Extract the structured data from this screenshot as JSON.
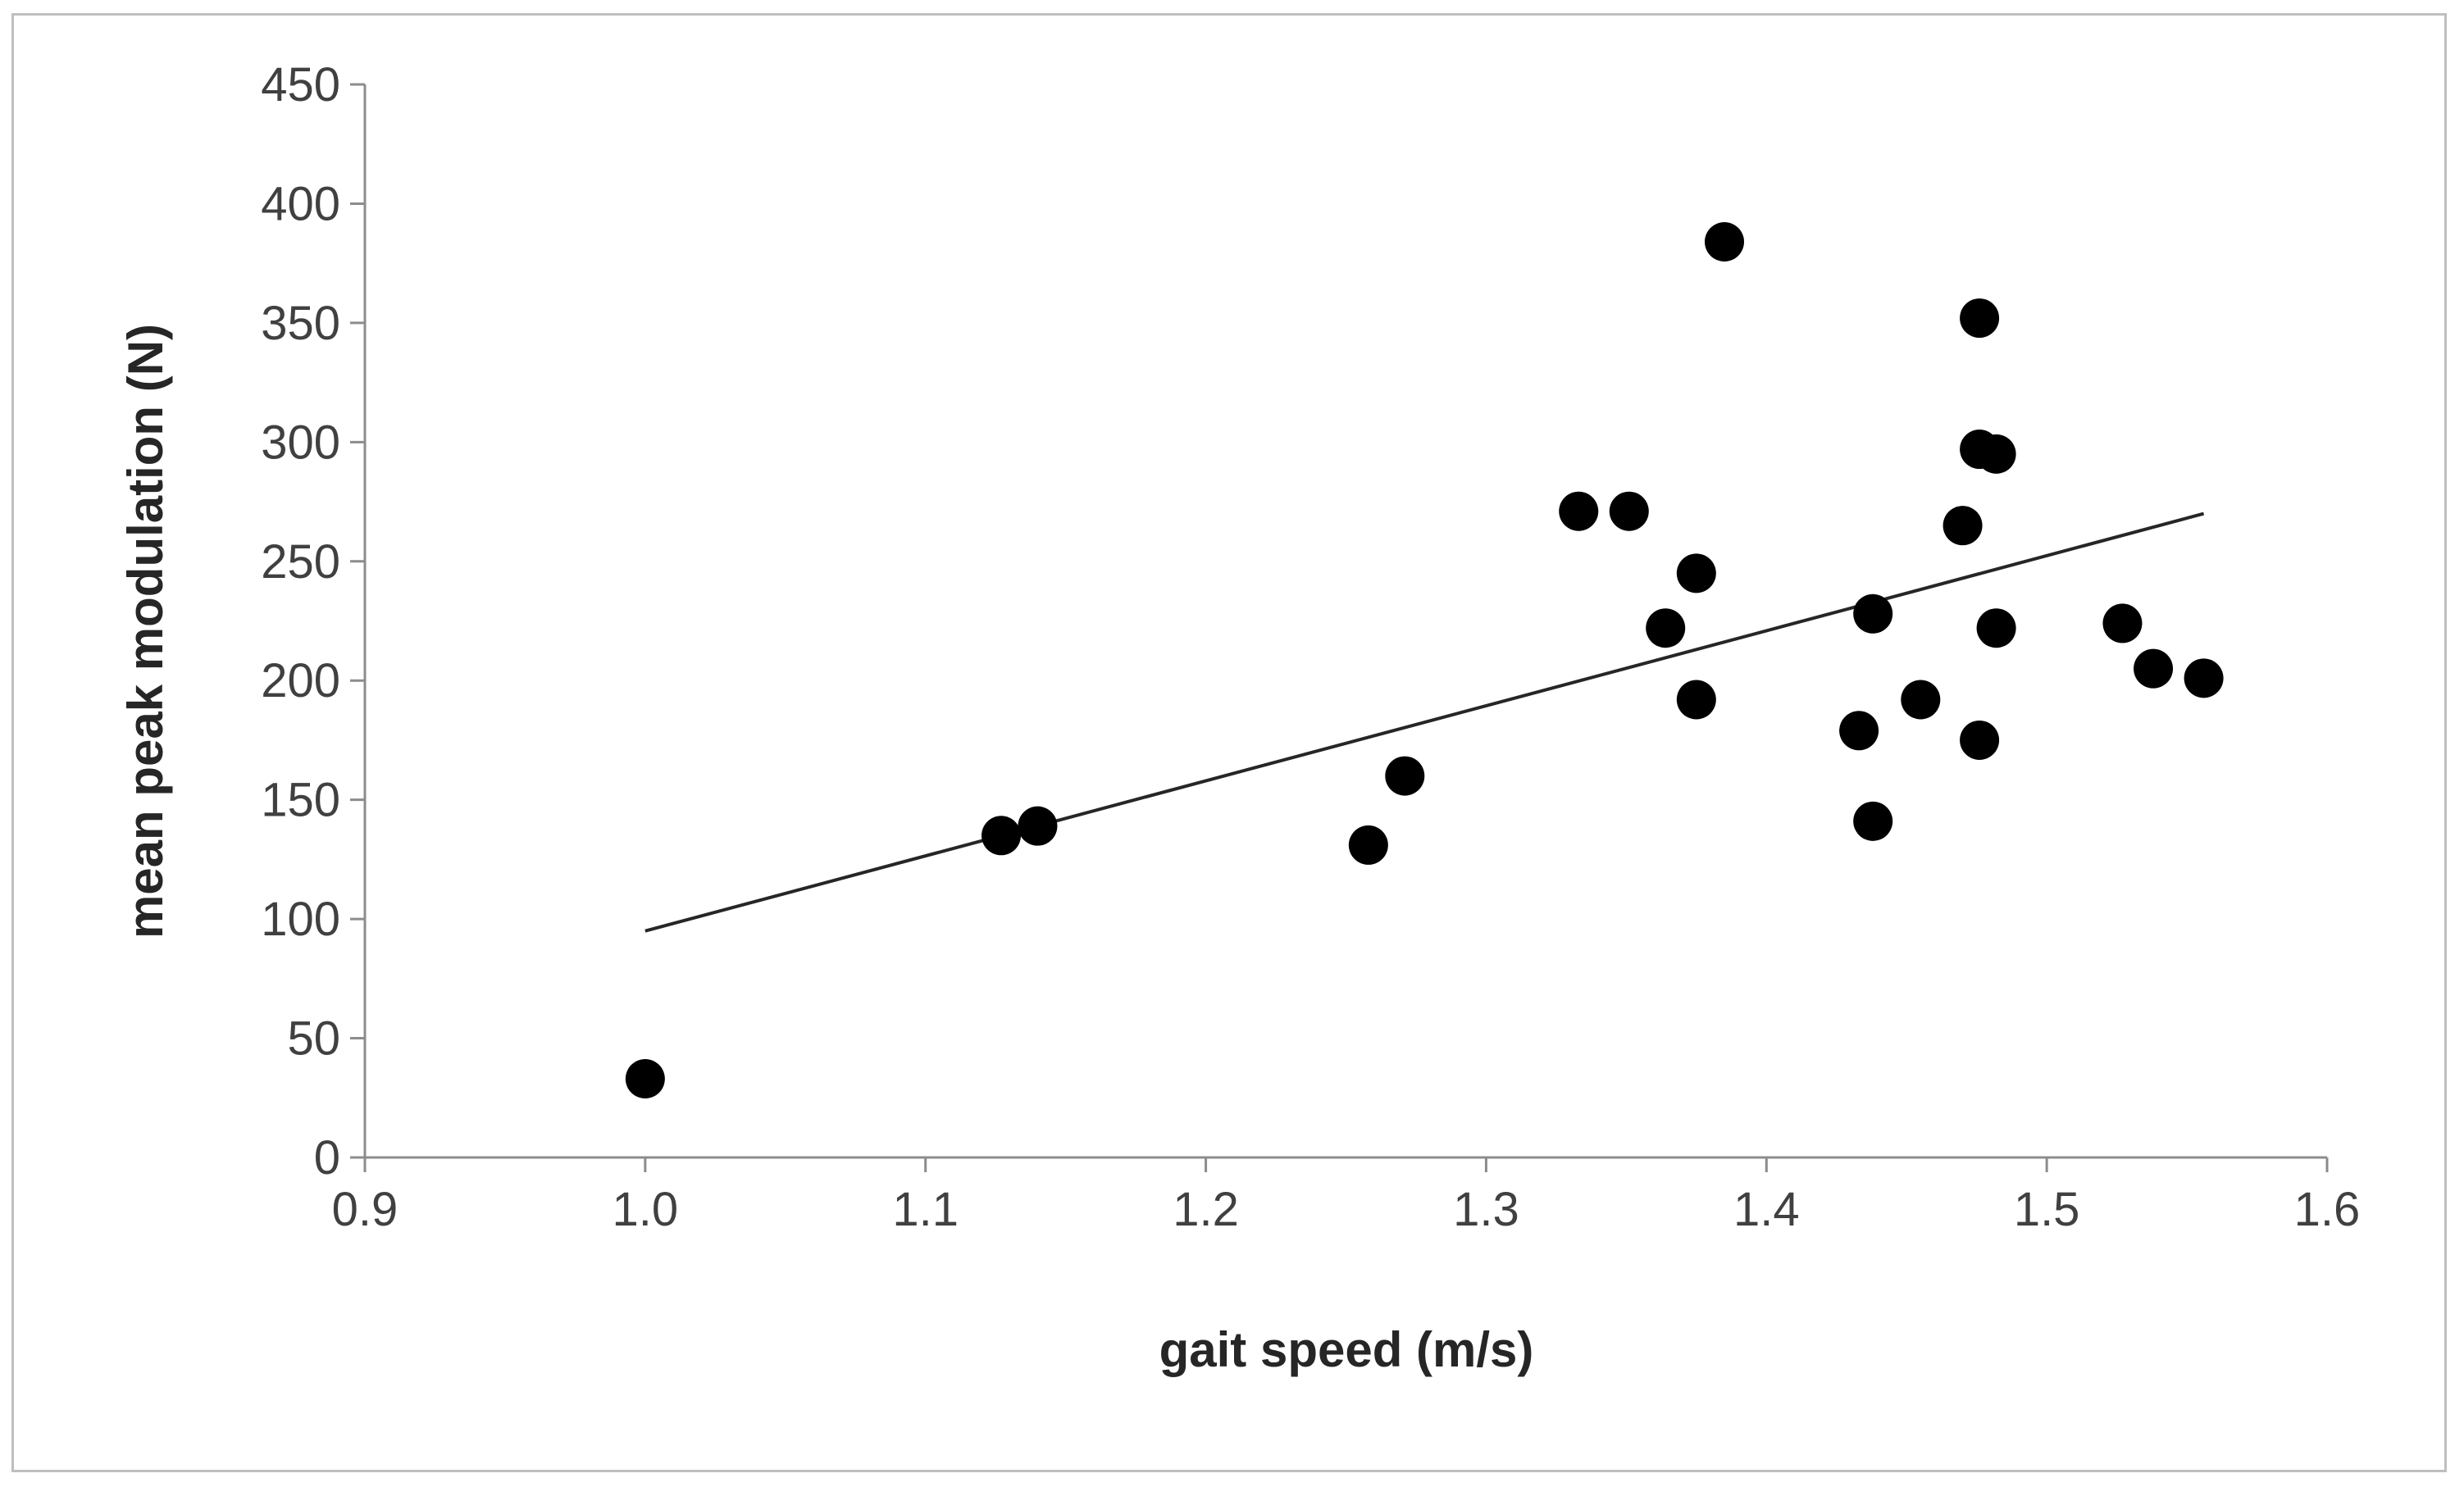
{
  "chart_data": {
    "type": "scatter",
    "title": "",
    "xlabel": "gait speed (m/s)",
    "ylabel": "mean peak modulation  (N)",
    "xlim": [
      0.9,
      1.6
    ],
    "ylim": [
      0,
      450
    ],
    "xticks": [
      0.9,
      1.0,
      1.1,
      1.2,
      1.3,
      1.4,
      1.5,
      1.6
    ],
    "xtick_labels": [
      "0.9",
      "1.0",
      "1.1",
      "1.2",
      "1.3",
      "1.4",
      "1.5",
      "1.6"
    ],
    "yticks": [
      0,
      50,
      100,
      150,
      200,
      250,
      300,
      350,
      400,
      450
    ],
    "ytick_labels": [
      "0",
      "50",
      "100",
      "150",
      "200",
      "250",
      "300",
      "350",
      "400",
      "450"
    ],
    "grid": false,
    "legend": "none",
    "marker_color": "#000000",
    "line_color": "#262626",
    "points": [
      {
        "x": 1.0,
        "y": 33
      },
      {
        "x": 1.127,
        "y": 135
      },
      {
        "x": 1.14,
        "y": 139
      },
      {
        "x": 1.258,
        "y": 131
      },
      {
        "x": 1.271,
        "y": 160
      },
      {
        "x": 1.333,
        "y": 271
      },
      {
        "x": 1.351,
        "y": 271
      },
      {
        "x": 1.364,
        "y": 222
      },
      {
        "x": 1.375,
        "y": 245
      },
      {
        "x": 1.375,
        "y": 192
      },
      {
        "x": 1.385,
        "y": 384
      },
      {
        "x": 1.433,
        "y": 179
      },
      {
        "x": 1.438,
        "y": 228
      },
      {
        "x": 1.438,
        "y": 141
      },
      {
        "x": 1.455,
        "y": 192
      },
      {
        "x": 1.47,
        "y": 265
      },
      {
        "x": 1.476,
        "y": 352
      },
      {
        "x": 1.476,
        "y": 297
      },
      {
        "x": 1.476,
        "y": 175
      },
      {
        "x": 1.482,
        "y": 295
      },
      {
        "x": 1.482,
        "y": 222
      },
      {
        "x": 1.527,
        "y": 224
      },
      {
        "x": 1.538,
        "y": 205
      },
      {
        "x": 1.556,
        "y": 201
      }
    ],
    "trendline": {
      "type": "linear",
      "x": [
        1.0,
        1.556
      ],
      "y": [
        95,
        270
      ]
    }
  }
}
